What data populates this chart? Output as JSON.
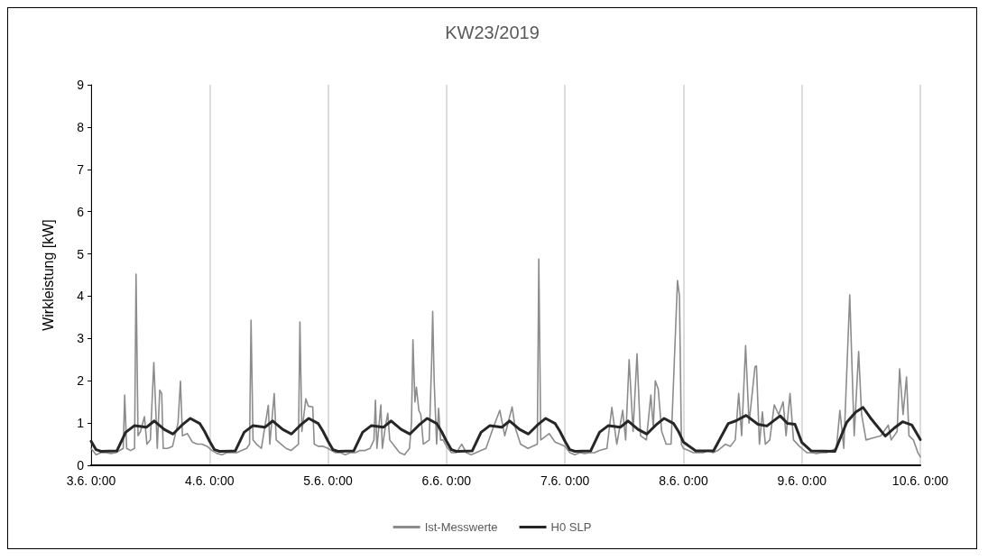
{
  "chart_data": {
    "type": "line",
    "title": "KW23/2019",
    "ylabel": "Wirkleistung [kW]",
    "xlim": [
      "2019-06-03T00:00",
      "2019-06-10T00:00"
    ],
    "xticks": [
      {
        "value": "2019-06-03T00:00",
        "label": "3.6. 0:00"
      },
      {
        "value": "2019-06-04T00:00",
        "label": "4.6. 0:00"
      },
      {
        "value": "2019-06-05T00:00",
        "label": "5.6. 0:00"
      },
      {
        "value": "2019-06-06T00:00",
        "label": "6.6. 0:00"
      },
      {
        "value": "2019-06-07T00:00",
        "label": "7.6. 0:00"
      },
      {
        "value": "2019-06-08T00:00",
        "label": "8.6. 0:00"
      },
      {
        "value": "2019-06-09T00:00",
        "label": "9.6. 0:00"
      },
      {
        "value": "2019-06-10T00:00",
        "label": "10.6. 0:00"
      }
    ],
    "ylim": [
      0,
      9
    ],
    "yticks": [
      0,
      1,
      2,
      3,
      4,
      5,
      6,
      7,
      8,
      9
    ],
    "grid": "x",
    "legend": "bottom",
    "marker": "none",
    "line_style": "solid",
    "series": [
      {
        "name": "Ist-Messwerte",
        "color": "#8c8c8c",
        "x": [
          "2019-06-03T00:00",
          "2019-06-03T01:00",
          "2019-06-03T02:00",
          "2019-06-03T03:00",
          "2019-06-03T04:00",
          "2019-06-03T05:00",
          "2019-06-03T06:30",
          "2019-06-03T06:48",
          "2019-06-03T07:12",
          "2019-06-03T08:00",
          "2019-06-03T08:48",
          "2019-06-03T09:06",
          "2019-06-03T09:30",
          "2019-06-03T10:00",
          "2019-06-03T10:48",
          "2019-06-03T11:18",
          "2019-06-03T12:00",
          "2019-06-03T12:42",
          "2019-06-03T13:00",
          "2019-06-03T13:24",
          "2019-06-03T13:54",
          "2019-06-03T14:18",
          "2019-06-03T14:36",
          "2019-06-03T15:30",
          "2019-06-03T16:30",
          "2019-06-03T17:36",
          "2019-06-03T18:06",
          "2019-06-03T18:30",
          "2019-06-03T19:30",
          "2019-06-03T20:30",
          "2019-06-03T21:30",
          "2019-06-03T22:30",
          "2019-06-03T23:30",
          "2019-06-04T00:30",
          "2019-06-04T01:30",
          "2019-06-04T02:30",
          "2019-06-04T03:30",
          "2019-06-04T04:30",
          "2019-06-04T05:30",
          "2019-06-04T06:30",
          "2019-06-04T07:30",
          "2019-06-04T08:06",
          "2019-06-04T08:24",
          "2019-06-04T08:48",
          "2019-06-04T09:30",
          "2019-06-04T10:30",
          "2019-06-04T11:54",
          "2019-06-04T12:12",
          "2019-06-04T13:06",
          "2019-06-04T13:30",
          "2019-06-04T14:30",
          "2019-06-04T15:30",
          "2019-06-04T16:30",
          "2019-06-04T18:00",
          "2019-06-04T18:18",
          "2019-06-04T18:42",
          "2019-06-04T19:30",
          "2019-06-04T20:00",
          "2019-06-04T20:54",
          "2019-06-04T21:12",
          "2019-06-04T22:00",
          "2019-06-04T23:00",
          "2019-06-05T00:00",
          "2019-06-05T01:30",
          "2019-06-05T02:30",
          "2019-06-05T03:30",
          "2019-06-05T04:30",
          "2019-06-05T05:30",
          "2019-06-05T06:30",
          "2019-06-05T07:30",
          "2019-06-05T08:30",
          "2019-06-05T09:18",
          "2019-06-05T09:36",
          "2019-06-05T09:54",
          "2019-06-05T10:42",
          "2019-06-05T11:00",
          "2019-06-05T11:36",
          "2019-06-05T12:06",
          "2019-06-05T12:30",
          "2019-06-05T13:30",
          "2019-06-05T14:30",
          "2019-06-05T15:30",
          "2019-06-05T16:30",
          "2019-06-05T16:54",
          "2019-06-05T17:12",
          "2019-06-05T17:36",
          "2019-06-05T17:54",
          "2019-06-05T18:24",
          "2019-06-05T18:48",
          "2019-06-05T19:18",
          "2019-06-05T20:30",
          "2019-06-05T21:00",
          "2019-06-05T21:12",
          "2019-06-05T21:30",
          "2019-06-05T22:00",
          "2019-06-05T22:24",
          "2019-06-05T22:48",
          "2019-06-05T23:18",
          "2019-06-06T00:00",
          "2019-06-06T01:00",
          "2019-06-06T02:00",
          "2019-06-06T03:06",
          "2019-06-06T04:00",
          "2019-06-06T05:00",
          "2019-06-06T06:00",
          "2019-06-06T07:00",
          "2019-06-06T08:00",
          "2019-06-06T09:30",
          "2019-06-06T10:48",
          "2019-06-06T11:48",
          "2019-06-06T13:18",
          "2019-06-06T13:54",
          "2019-06-06T15:00",
          "2019-06-06T16:30",
          "2019-06-06T18:24",
          "2019-06-06T18:42",
          "2019-06-06T19:06",
          "2019-06-06T20:48",
          "2019-06-06T22:00",
          "2019-06-06T23:00",
          "2019-06-07T00:00",
          "2019-06-07T01:00",
          "2019-06-07T02:00",
          "2019-06-07T03:00",
          "2019-06-07T04:00",
          "2019-06-07T05:00",
          "2019-06-07T06:00",
          "2019-06-07T07:00",
          "2019-06-07T08:30",
          "2019-06-07T09:30",
          "2019-06-07T10:30",
          "2019-06-07T11:42",
          "2019-06-07T12:18",
          "2019-06-07T13:00",
          "2019-06-07T13:48",
          "2019-06-07T14:36",
          "2019-06-07T15:18",
          "2019-06-07T16:30",
          "2019-06-07T17:24",
          "2019-06-07T17:54",
          "2019-06-07T18:18",
          "2019-06-07T18:54",
          "2019-06-07T19:36",
          "2019-06-07T20:30",
          "2019-06-07T21:30",
          "2019-06-07T22:48",
          "2019-06-07T23:12",
          "2019-06-07T23:36",
          "2019-06-08T00:00",
          "2019-06-08T01:00",
          "2019-06-08T02:00",
          "2019-06-08T03:00",
          "2019-06-08T04:00",
          "2019-06-08T05:00",
          "2019-06-08T06:00",
          "2019-06-08T07:00",
          "2019-06-08T08:30",
          "2019-06-08T09:30",
          "2019-06-08T10:30",
          "2019-06-08T11:12",
          "2019-06-08T11:48",
          "2019-06-08T12:36",
          "2019-06-08T13:18",
          "2019-06-08T14:30",
          "2019-06-08T14:48",
          "2019-06-08T15:24",
          "2019-06-08T16:00",
          "2019-06-08T16:36",
          "2019-06-08T17:30",
          "2019-06-08T18:24",
          "2019-06-08T19:18",
          "2019-06-08T20:12",
          "2019-06-08T20:48",
          "2019-06-08T21:36",
          "2019-06-08T22:18",
          "2019-06-08T23:30",
          "2019-06-09T00:00",
          "2019-06-09T01:00",
          "2019-06-09T02:00",
          "2019-06-09T03:00",
          "2019-06-09T04:00",
          "2019-06-09T05:00",
          "2019-06-09T06:00",
          "2019-06-09T07:00",
          "2019-06-09T07:42",
          "2019-06-09T08:30",
          "2019-06-09T09:42",
          "2019-06-09T10:36",
          "2019-06-09T11:30",
          "2019-06-09T12:06",
          "2019-06-09T13:00",
          "2019-06-09T14:30",
          "2019-06-09T16:00",
          "2019-06-09T17:30",
          "2019-06-09T18:06",
          "2019-06-09T19:18",
          "2019-06-09T19:48",
          "2019-06-09T20:30",
          "2019-06-09T21:12",
          "2019-06-09T21:42",
          "2019-06-09T22:36",
          "2019-06-09T23:30",
          "2019-06-10T00:00"
        ],
        "values": [
          0.4,
          0.25,
          0.3,
          0.3,
          0.28,
          0.3,
          0.4,
          1.66,
          0.4,
          0.35,
          0.4,
          4.52,
          0.7,
          0.8,
          1.15,
          0.5,
          0.6,
          2.43,
          1.6,
          0.4,
          1.78,
          1.7,
          0.4,
          0.4,
          0.45,
          1.0,
          1.99,
          0.7,
          0.75,
          0.55,
          0.5,
          0.5,
          0.45,
          0.35,
          0.28,
          0.25,
          0.3,
          0.3,
          0.3,
          0.35,
          0.4,
          0.5,
          3.43,
          0.6,
          0.5,
          0.4,
          1.42,
          0.5,
          1.7,
          0.6,
          0.5,
          0.4,
          0.35,
          0.5,
          3.39,
          0.8,
          1.57,
          1.4,
          1.38,
          0.5,
          0.45,
          0.45,
          0.4,
          0.3,
          0.3,
          0.25,
          0.3,
          0.3,
          0.35,
          0.35,
          0.4,
          0.6,
          1.54,
          0.4,
          1.43,
          0.4,
          0.9,
          1.23,
          0.6,
          0.45,
          0.3,
          0.25,
          0.4,
          1.0,
          2.97,
          1.5,
          1.85,
          1.3,
          1.2,
          0.5,
          0.6,
          2.5,
          3.64,
          2.0,
          0.5,
          1.35,
          0.6,
          0.6,
          0.45,
          0.3,
          0.3,
          0.5,
          0.3,
          0.25,
          0.3,
          0.35,
          0.4,
          0.9,
          1.3,
          0.7,
          1.38,
          0.9,
          0.5,
          0.4,
          0.5,
          4.88,
          0.6,
          0.75,
          0.55,
          0.5,
          0.45,
          0.3,
          0.25,
          0.3,
          0.28,
          0.3,
          0.3,
          0.35,
          0.4,
          1.37,
          0.5,
          1.3,
          0.6,
          2.5,
          0.8,
          2.64,
          0.7,
          0.6,
          1.66,
          0.9,
          2.0,
          1.8,
          0.8,
          0.5,
          0.5,
          4.37,
          4.0,
          0.5,
          0.4,
          0.35,
          0.3,
          0.3,
          0.3,
          0.35,
          0.3,
          0.35,
          0.5,
          0.45,
          0.6,
          1.7,
          0.7,
          2.83,
          1.0,
          2.33,
          2.35,
          0.5,
          1.26,
          0.5,
          0.6,
          1.43,
          1.2,
          1.5,
          0.7,
          1.7,
          0.6,
          0.45,
          0.4,
          0.3,
          0.3,
          0.28,
          0.3,
          0.3,
          0.35,
          0.4,
          1.3,
          0.4,
          4.03,
          0.7,
          2.69,
          1.2,
          0.6,
          0.65,
          0.7,
          0.95,
          0.6,
          0.8,
          2.28,
          1.2,
          2.09,
          0.7,
          0.6,
          0.3,
          0.2
        ]
      },
      {
        "name": "H0 SLP",
        "color": "#262626",
        "x": [
          "2019-06-03T00:00",
          "2019-06-03T01:00",
          "2019-06-03T02:00",
          "2019-06-03T05:12",
          "2019-06-03T07:00",
          "2019-06-03T08:48",
          "2019-06-03T11:12",
          "2019-06-03T12:48",
          "2019-06-03T14:48",
          "2019-06-03T16:36",
          "2019-06-03T18:24",
          "2019-06-03T20:06",
          "2019-06-03T22:00",
          "2019-06-03T23:00",
          "2019-06-04T00:00",
          "2019-06-04T01:00",
          "2019-06-04T02:00",
          "2019-06-04T05:12",
          "2019-06-04T07:00",
          "2019-06-04T08:48",
          "2019-06-04T11:12",
          "2019-06-04T12:48",
          "2019-06-04T14:48",
          "2019-06-04T16:36",
          "2019-06-04T18:24",
          "2019-06-04T20:06",
          "2019-06-04T22:00",
          "2019-06-04T23:00",
          "2019-06-05T00:00",
          "2019-06-05T01:00",
          "2019-06-05T02:00",
          "2019-06-05T05:12",
          "2019-06-05T07:00",
          "2019-06-05T08:48",
          "2019-06-05T11:12",
          "2019-06-05T12:48",
          "2019-06-05T14:48",
          "2019-06-05T16:36",
          "2019-06-05T18:24",
          "2019-06-05T20:06",
          "2019-06-05T22:00",
          "2019-06-05T23:00",
          "2019-06-06T00:00",
          "2019-06-06T01:00",
          "2019-06-06T02:00",
          "2019-06-06T05:12",
          "2019-06-06T07:00",
          "2019-06-06T08:48",
          "2019-06-06T11:12",
          "2019-06-06T12:48",
          "2019-06-06T14:48",
          "2019-06-06T16:36",
          "2019-06-06T18:24",
          "2019-06-06T20:06",
          "2019-06-06T22:00",
          "2019-06-06T23:00",
          "2019-06-07T00:00",
          "2019-06-07T01:00",
          "2019-06-07T02:00",
          "2019-06-07T05:12",
          "2019-06-07T07:00",
          "2019-06-07T08:48",
          "2019-06-07T11:12",
          "2019-06-07T12:48",
          "2019-06-07T14:48",
          "2019-06-07T16:36",
          "2019-06-07T18:24",
          "2019-06-07T20:06",
          "2019-06-07T22:00",
          "2019-06-07T23:00",
          "2019-06-08T00:00",
          "2019-06-08T02:30",
          "2019-06-08T06:06",
          "2019-06-08T09:06",
          "2019-06-08T10:36",
          "2019-06-08T12:42",
          "2019-06-08T15:06",
          "2019-06-08T16:54",
          "2019-06-08T19:36",
          "2019-06-08T21:06",
          "2019-06-08T22:36",
          "2019-06-09T00:00",
          "2019-06-09T01:54",
          "2019-06-09T06:42",
          "2019-06-09T09:06",
          "2019-06-09T10:54",
          "2019-06-09T12:24",
          "2019-06-09T13:54",
          "2019-06-09T16:54",
          "2019-06-09T18:42",
          "2019-06-09T20:24",
          "2019-06-09T22:18",
          "2019-06-10T00:00"
        ],
        "values": [
          0.57,
          0.37,
          0.33,
          0.34,
          0.78,
          0.94,
          0.9,
          1.05,
          0.85,
          0.74,
          0.95,
          1.11,
          0.99,
          0.8,
          0.57,
          0.37,
          0.33,
          0.34,
          0.78,
          0.94,
          0.9,
          1.05,
          0.85,
          0.74,
          0.95,
          1.11,
          0.99,
          0.8,
          0.57,
          0.37,
          0.33,
          0.34,
          0.78,
          0.94,
          0.9,
          1.05,
          0.85,
          0.74,
          0.95,
          1.11,
          0.99,
          0.8,
          0.57,
          0.37,
          0.33,
          0.34,
          0.78,
          0.94,
          0.9,
          1.05,
          0.85,
          0.74,
          0.95,
          1.11,
          0.99,
          0.8,
          0.57,
          0.37,
          0.33,
          0.34,
          0.78,
          0.94,
          0.9,
          1.05,
          0.85,
          0.74,
          0.95,
          1.11,
          0.99,
          0.8,
          0.55,
          0.34,
          0.34,
          0.99,
          1.05,
          1.18,
          0.97,
          0.93,
          1.17,
          0.99,
          0.97,
          0.54,
          0.34,
          0.33,
          1.02,
          1.26,
          1.37,
          1.12,
          0.69,
          0.88,
          1.03,
          0.95,
          0.61
        ]
      }
    ]
  }
}
